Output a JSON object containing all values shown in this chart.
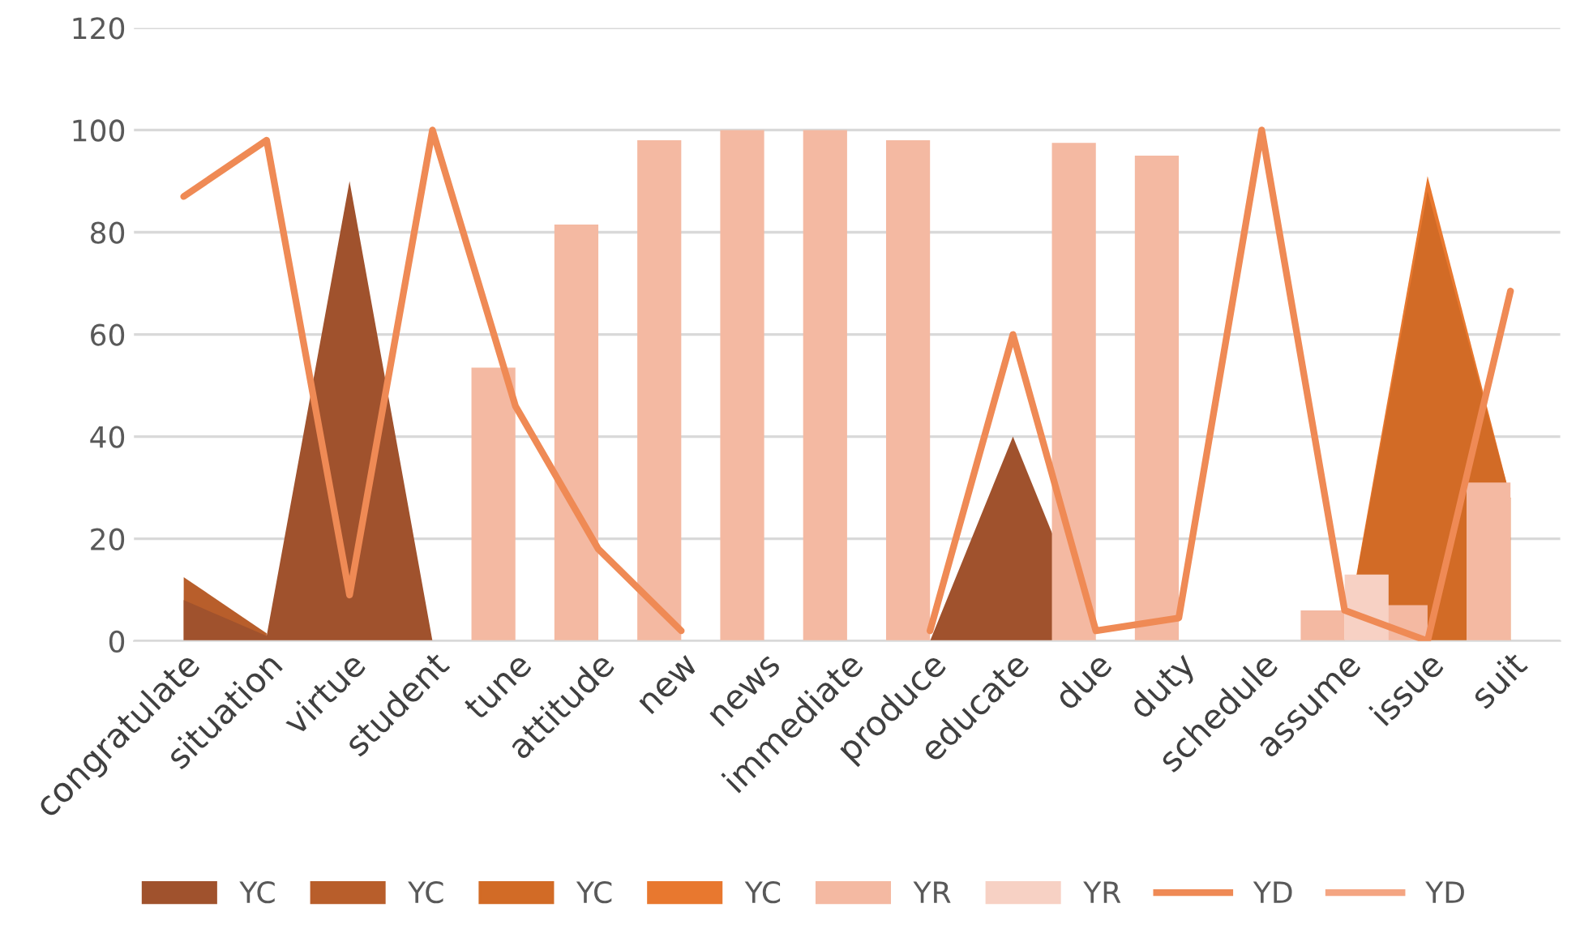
{
  "chart_data": {
    "type": "area",
    "categories": [
      "congratulate",
      "situation",
      "virtue",
      "student",
      "tune",
      "attitude",
      "new",
      "news",
      "immediate",
      "produce",
      "educate",
      "due",
      "duty",
      "schedule",
      "assume",
      "issue",
      "suit"
    ],
    "ylim": [
      0,
      120
    ],
    "yticks": [
      0,
      20,
      40,
      60,
      80,
      100,
      120
    ],
    "grid": "y",
    "legend": "bottom",
    "series": [
      {
        "name": "YC",
        "color": "#a0522d",
        "values": [
          8,
          1,
          90,
          0,
          null,
          null,
          null,
          null,
          null,
          0,
          40,
          0,
          null,
          null,
          null,
          null,
          null
        ]
      },
      {
        "name": "YC",
        "color": "#b85e2b",
        "values": [
          12.5,
          1.5,
          null,
          null,
          null,
          null,
          null,
          null,
          null,
          null,
          null,
          null,
          null,
          null,
          null,
          null,
          null
        ]
      },
      {
        "name": "YC",
        "color": "#d26b26",
        "values": [
          null,
          null,
          null,
          null,
          null,
          null,
          null,
          null,
          null,
          null,
          null,
          null,
          null,
          null,
          0,
          88,
          28
        ]
      },
      {
        "name": "YC",
        "color": "#e8782f",
        "values": [
          null,
          null,
          null,
          null,
          null,
          null,
          null,
          null,
          null,
          null,
          null,
          null,
          null,
          null,
          0,
          91,
          28
        ]
      },
      {
        "name": "YR",
        "type": "bar",
        "color": "#f4b9a2",
        "values": [
          0,
          0,
          0,
          0,
          53.5,
          81.5,
          98,
          100,
          100,
          98,
          0,
          97.5,
          95,
          0,
          6,
          7,
          31
        ]
      },
      {
        "name": "YR",
        "type": "bar",
        "color": "#f7d1c4",
        "values": [
          0,
          0,
          0,
          0,
          0,
          0,
          0,
          0,
          0,
          0,
          0,
          0,
          0,
          0,
          13,
          0,
          0
        ]
      },
      {
        "name": "YD",
        "type": "line",
        "color": "#ef8a55",
        "values": [
          87,
          98,
          9,
          100,
          46,
          18,
          2,
          null,
          null,
          2,
          60,
          2,
          4.5,
          100,
          6,
          0,
          68.5
        ]
      },
      {
        "name": "YD",
        "type": "line",
        "color": "#f4a582",
        "values": [
          null,
          null,
          null,
          null,
          null,
          null,
          null,
          null,
          null,
          null,
          null,
          null,
          null,
          null,
          null,
          null,
          null
        ]
      }
    ]
  }
}
